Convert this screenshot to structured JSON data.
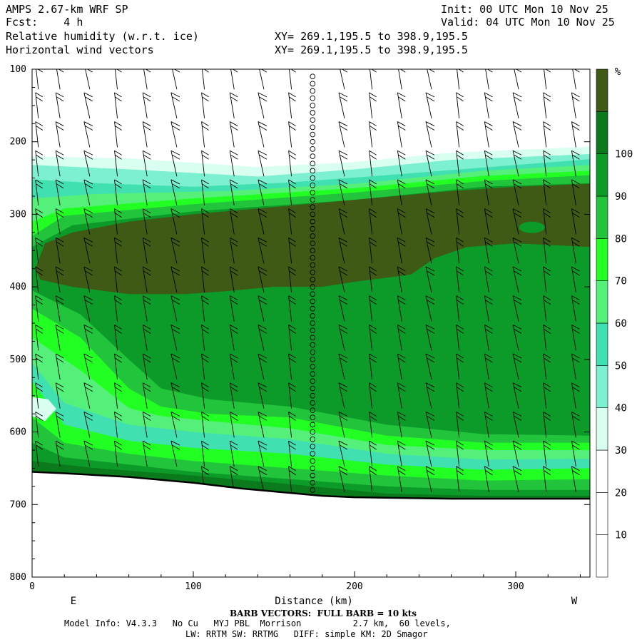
{
  "header": {
    "model": "AMPS 2.67-km WRF SP",
    "init": "Init: 00 UTC Mon 10 Nov 25",
    "fcst": "Fcst:    4 h",
    "valid": "Valid: 04 UTC Mon 10 Nov 25",
    "field1": "Relative humidity (w.r.t. ice)",
    "xy1": "XY= 269.1,195.5 to 398.9,195.5",
    "field2": "Horizontal wind vectors",
    "xy2": "XY= 269.1,195.5 to 398.9,195.5"
  },
  "footer": {
    "barb_note": "BARB VECTORS:  FULL BARB = 10 kts",
    "model_info": "Model Info: V4.3.3   No Cu   MYJ PBL  Morrison          2.7 km,  60 levels,",
    "physics": "LW: RRTM SW: RRTMG   DIFF: simple KM: 2D Smagor"
  },
  "chart_data": {
    "type": "heatmap",
    "title": "Relative humidity (w.r.t. ice)",
    "xlabel": "Distance (km)",
    "ylabel": "",
    "x_ticks": [
      0,
      100,
      200,
      300
    ],
    "y_ticks": [
      100,
      200,
      300,
      400,
      500,
      600,
      700,
      800
    ],
    "xlim": [
      0,
      346
    ],
    "ylim": [
      800,
      100
    ],
    "x_end_labels": {
      "left": "E",
      "right": "W"
    },
    "colorbar": {
      "unit": "%",
      "levels": [
        10,
        20,
        30,
        40,
        50,
        60,
        70,
        80,
        90,
        100
      ],
      "colors": [
        "#ffffff",
        "#ffffff",
        "#ffffff",
        "#d8fff0",
        "#7df0d2",
        "#40e0b0",
        "#55f07a",
        "#22ff22",
        "#22c43c",
        "#0c9a28",
        "#0a7a1c",
        "#3e5a14"
      ]
    },
    "rh_layers": [
      {
        "level": 30,
        "color": "#d8fff0",
        "top": [
          [
            0,
            220
          ],
          [
            60,
            223
          ],
          [
            140,
            235
          ],
          [
            200,
            228
          ],
          [
            260,
            215
          ],
          [
            346,
            207
          ]
        ],
        "bottom": [
          [
            0,
            700
          ],
          [
            346,
            700
          ]
        ]
      },
      {
        "level": 40,
        "color": "#7df0d2",
        "top": [
          [
            0,
            232
          ],
          [
            60,
            238
          ],
          [
            140,
            248
          ],
          [
            200,
            238
          ],
          [
            260,
            225
          ],
          [
            346,
            217
          ]
        ],
        "bottom": [
          [
            0,
            700
          ],
          [
            346,
            700
          ]
        ]
      },
      {
        "level": 50,
        "color": "#40e0b0",
        "top": [
          [
            0,
            252
          ],
          [
            40,
            257
          ],
          [
            100,
            262
          ],
          [
            160,
            256
          ],
          [
            220,
            246
          ],
          [
            300,
            232
          ],
          [
            346,
            224
          ]
        ],
        "bottom": [
          [
            0,
            700
          ],
          [
            346,
            700
          ]
        ]
      },
      {
        "level": 60,
        "color": "#55f07a",
        "top": [
          [
            0,
            278
          ],
          [
            40,
            272
          ],
          [
            120,
            268
          ],
          [
            200,
            258
          ],
          [
            280,
            240
          ],
          [
            346,
            232
          ]
        ],
        "bottom": [
          [
            0,
            700
          ],
          [
            346,
            700
          ]
        ]
      },
      {
        "level": 70,
        "color": "#22ff22",
        "top": [
          [
            0,
            310
          ],
          [
            20,
            292
          ],
          [
            100,
            278
          ],
          [
            200,
            264
          ],
          [
            280,
            247
          ],
          [
            346,
            240
          ]
        ],
        "bottom": [
          [
            0,
            700
          ],
          [
            346,
            700
          ]
        ]
      },
      {
        "level": 80,
        "color": "#22c43c",
        "top": [
          [
            0,
            330
          ],
          [
            20,
            302
          ],
          [
            100,
            286
          ],
          [
            200,
            270
          ],
          [
            280,
            254
          ],
          [
            346,
            246
          ]
        ],
        "bottom": [
          [
            0,
            700
          ],
          [
            346,
            700
          ]
        ]
      },
      {
        "level": 90,
        "color": "#0c9a28",
        "top": [
          [
            0,
            345
          ],
          [
            25,
            315
          ],
          [
            100,
            296
          ],
          [
            200,
            280
          ],
          [
            280,
            262
          ],
          [
            346,
            257
          ]
        ],
        "bottom": [
          [
            0,
            700
          ],
          [
            346,
            700
          ]
        ]
      }
    ],
    "dry_patches": [
      {
        "color": "#d8fff0",
        "points": [
          [
            0,
            552
          ],
          [
            10,
            555
          ],
          [
            15,
            568
          ],
          [
            8,
            585
          ],
          [
            0,
            578
          ]
        ]
      }
    ],
    "lower_bands": [
      {
        "color": "#22c43c",
        "top": [
          [
            0,
            405
          ],
          [
            30,
            438
          ],
          [
            60,
            500
          ],
          [
            80,
            540
          ],
          [
            110,
            555
          ],
          [
            160,
            565
          ],
          [
            220,
            590
          ],
          [
            280,
            603
          ],
          [
            346,
            605
          ]
        ]
      },
      {
        "color": "#22ff22",
        "top": [
          [
            0,
            430
          ],
          [
            30,
            470
          ],
          [
            60,
            540
          ],
          [
            80,
            565
          ],
          [
            110,
            575
          ],
          [
            160,
            580
          ],
          [
            220,
            605
          ],
          [
            280,
            615
          ],
          [
            346,
            615
          ]
        ]
      },
      {
        "color": "#55f07a",
        "top": [
          [
            0,
            470
          ],
          [
            30,
            515
          ],
          [
            60,
            567
          ],
          [
            80,
            578
          ],
          [
            110,
            585
          ],
          [
            160,
            595
          ],
          [
            220,
            618
          ],
          [
            280,
            625
          ],
          [
            346,
            625
          ]
        ]
      },
      {
        "color": "#40e0b0",
        "top": [
          [
            0,
            505
          ],
          [
            20,
            560
          ],
          [
            60,
            590
          ],
          [
            100,
            600
          ],
          [
            160,
            610
          ],
          [
            220,
            630
          ],
          [
            280,
            638
          ],
          [
            346,
            637
          ]
        ]
      },
      {
        "color": "#22ff22",
        "top": [
          [
            0,
            530
          ],
          [
            20,
            590
          ],
          [
            60,
            612
          ],
          [
            100,
            622
          ],
          [
            160,
            630
          ],
          [
            220,
            645
          ],
          [
            280,
            652
          ],
          [
            346,
            650
          ]
        ]
      },
      {
        "color": "#22c43c",
        "top": [
          [
            0,
            580
          ],
          [
            20,
            615
          ],
          [
            60,
            630
          ],
          [
            100,
            640
          ],
          [
            160,
            650
          ],
          [
            220,
            660
          ],
          [
            280,
            667
          ],
          [
            346,
            665
          ]
        ]
      },
      {
        "color": "#0c9a28",
        "top": [
          [
            0,
            615
          ],
          [
            20,
            635
          ],
          [
            60,
            645
          ],
          [
            100,
            655
          ],
          [
            160,
            665
          ],
          [
            220,
            675
          ],
          [
            280,
            680
          ],
          [
            346,
            680
          ]
        ]
      },
      {
        "color": "#0a7a1c",
        "top": [
          [
            0,
            640
          ],
          [
            40,
            650
          ],
          [
            100,
            660
          ],
          [
            160,
            672
          ],
          [
            220,
            685
          ],
          [
            280,
            688
          ],
          [
            346,
            688
          ]
        ]
      }
    ],
    "moist_core": {
      "color": "#3e5a14",
      "points": [
        [
          2,
          375
        ],
        [
          8,
          340
        ],
        [
          25,
          325
        ],
        [
          60,
          310
        ],
        [
          100,
          300
        ],
        [
          150,
          290
        ],
        [
          200,
          280
        ],
        [
          260,
          268
        ],
        [
          300,
          262
        ],
        [
          346,
          258
        ],
        [
          346,
          345
        ],
        [
          300,
          340
        ],
        [
          270,
          345
        ],
        [
          250,
          360
        ],
        [
          235,
          383
        ],
        [
          200,
          393
        ],
        [
          180,
          400
        ],
        [
          150,
          400
        ],
        [
          120,
          406
        ],
        [
          95,
          410
        ],
        [
          60,
          410
        ],
        [
          25,
          400
        ],
        [
          5,
          390
        ]
      ]
    },
    "terrain": {
      "color": "#000000",
      "surface": [
        [
          0,
          655
        ],
        [
          20,
          657
        ],
        [
          60,
          662
        ],
        [
          100,
          670
        ],
        [
          130,
          678
        ],
        [
          160,
          684
        ],
        [
          180,
          688
        ],
        [
          200,
          690
        ],
        [
          230,
          691
        ],
        [
          260,
          692
        ],
        [
          300,
          692
        ],
        [
          346,
          692
        ]
      ]
    },
    "wind_barb_columns": {
      "x_km": [
        3,
        16,
        34,
        52,
        70,
        88,
        106,
        124,
        142,
        160,
        174,
        192,
        210,
        228,
        246,
        264,
        282,
        300,
        318,
        336
      ],
      "calm_column_x_km": 174,
      "barb_pressures": [
        110,
        150,
        190,
        230,
        270,
        310,
        350,
        390,
        430,
        470,
        510,
        550,
        590,
        630,
        665
      ]
    }
  }
}
